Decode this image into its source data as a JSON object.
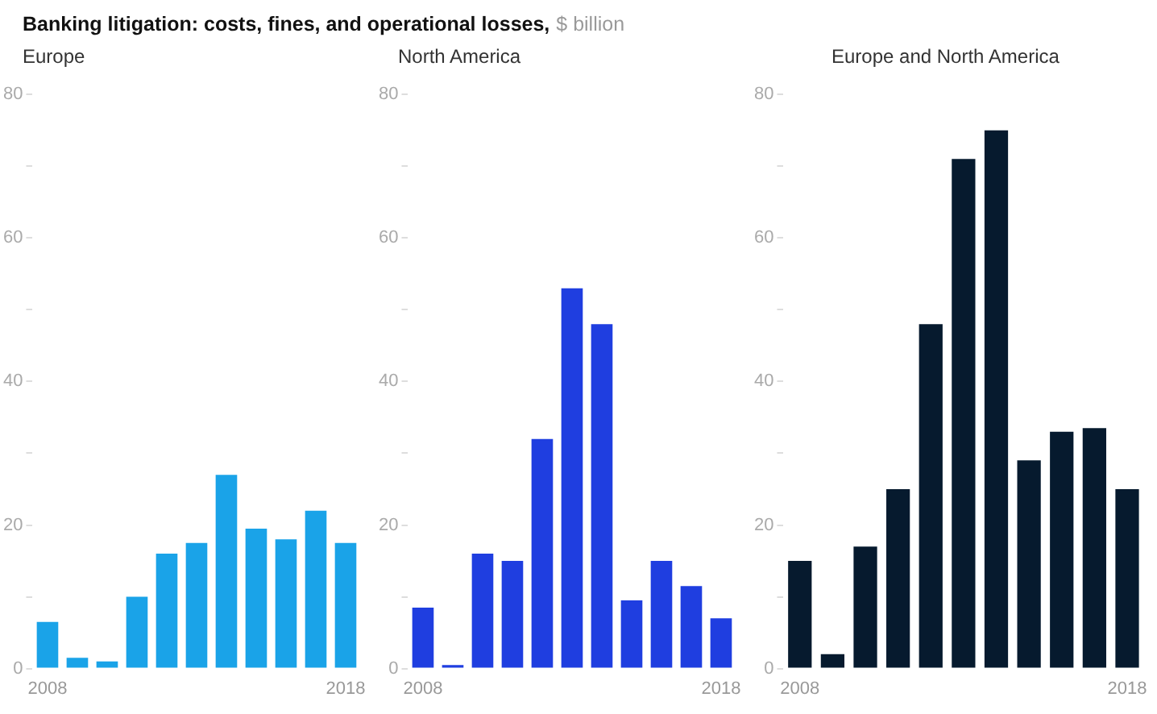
{
  "chart_data": [
    {
      "type": "bar",
      "title": "Europe",
      "annotations": [
        "Banking litigation: costs, fines, and operational losses,",
        "$ billion"
      ],
      "categories": [
        "2008",
        null,
        null,
        null,
        null,
        null,
        null,
        null,
        null,
        null,
        "2018"
      ],
      "values": [
        6.5,
        1.5,
        1,
        10,
        16,
        17.5,
        27,
        19.5,
        18,
        22,
        17.5
      ],
      "color": "#1aa3e8",
      "ylim": [
        0,
        80
      ],
      "yticks": [
        0,
        {
          "value": 10,
          "label": null
        },
        20,
        {
          "value": 30,
          "label": null
        },
        40,
        {
          "value": 50,
          "label": null
        },
        60,
        {
          "value": 70,
          "label": null
        },
        80
      ],
      "grid": false
    },
    {
      "type": "bar",
      "title": "North America",
      "categories": [
        "2008",
        null,
        null,
        null,
        null,
        null,
        null,
        null,
        null,
        null,
        "2018"
      ],
      "values": [
        8.5,
        0.5,
        16,
        15,
        32,
        53,
        48,
        9.5,
        15,
        11.5,
        7
      ],
      "color": "#1f3ee0",
      "ylim": [
        0,
        80
      ],
      "yticks": [
        0,
        {
          "value": 10,
          "label": null
        },
        20,
        {
          "value": 30,
          "label": null
        },
        40,
        {
          "value": 50,
          "label": null
        },
        60,
        {
          "value": 70,
          "label": null
        },
        80
      ],
      "grid": false
    },
    {
      "type": "bar",
      "title": "Europe and North America",
      "categories": [
        "2008",
        null,
        null,
        null,
        null,
        null,
        null,
        null,
        null,
        null,
        "2018"
      ],
      "values": [
        15,
        2,
        17,
        25,
        48,
        71,
        75,
        29,
        33,
        33.5,
        25
      ],
      "color": "#061a2e",
      "ylim": [
        0,
        80
      ],
      "yticks": [
        0,
        {
          "value": 10,
          "label": null
        },
        20,
        {
          "value": 30,
          "label": null
        },
        40,
        {
          "value": 50,
          "label": null
        },
        60,
        {
          "value": 70,
          "label": null
        },
        80
      ],
      "grid": false
    }
  ]
}
